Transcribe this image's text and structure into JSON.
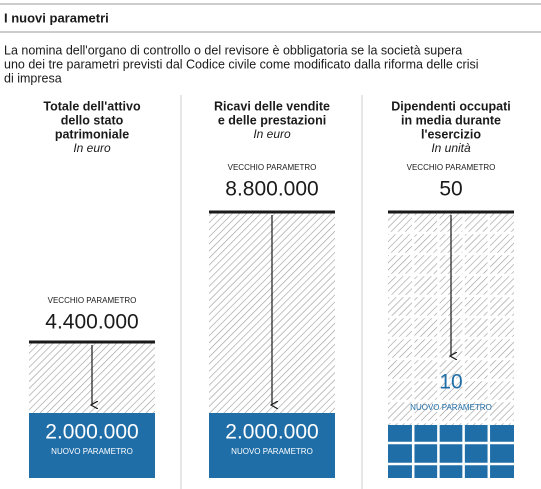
{
  "header": {
    "title": "I nuovi parametri",
    "intro": [
      "La nomina dell'organo di controllo o del revisore è obbligatoria se la società supera",
      "uno dei tre parametri previsti dal Codice civile come modificato dalla riforma delle crisi",
      "di impresa"
    ]
  },
  "columns": [
    {
      "title": [
        "Totale dell'attivo",
        "dello stato",
        "patrimoniale"
      ],
      "unit": "In euro",
      "old_label": "VECCHIO PARAMETRO",
      "old_value": "4.400.000",
      "new_value": "2.000.000",
      "new_label": "NUOVO PARAMETRO"
    },
    {
      "title": [
        "Ricavi delle vendite",
        "e delle prestazioni"
      ],
      "unit": "In euro",
      "old_label": "VECCHIO PARAMETRO",
      "old_value": "8.800.000",
      "new_value": "2.000.000",
      "new_label": "NUOVO PARAMETRO"
    },
    {
      "title": [
        "Dipendenti occupati",
        "in media durante",
        "l'esercizio"
      ],
      "unit": "In unità",
      "old_label": "VECCHIO PARAMETRO",
      "old_value": "50",
      "new_value": "10",
      "new_label": "NUOVO PARAMETRO"
    }
  ]
}
